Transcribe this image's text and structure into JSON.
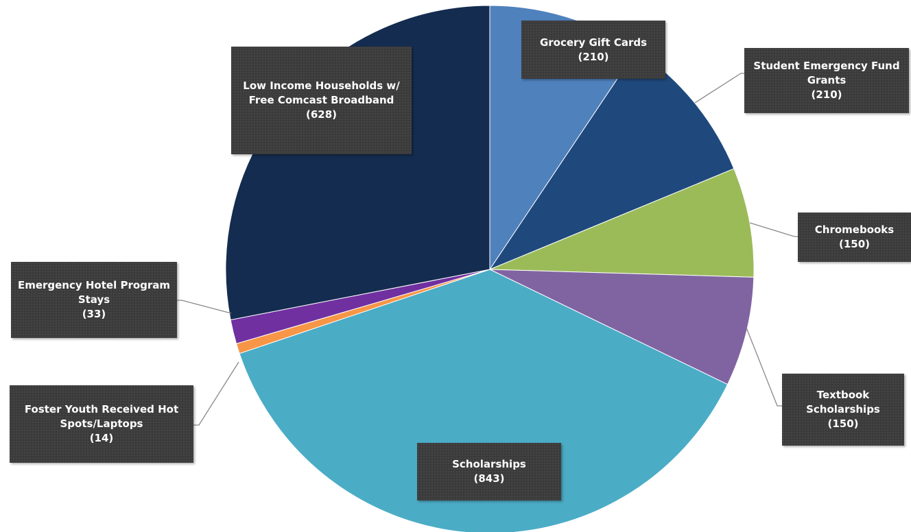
{
  "chart_data": {
    "type": "pie",
    "categories": [
      "Grocery Gift Cards",
      "Student Emergency Fund Grants",
      "Chromebooks",
      "Textbook Scholarships",
      "Scholarships",
      "Foster Youth Received Hot Spots/Laptops",
      "Emergency Hotel Program Stays",
      "Low Income Households w/ Free Comcast Broadband"
    ],
    "values": [
      210,
      210,
      150,
      150,
      843,
      14,
      33,
      628
    ],
    "value_labels": [
      "(210)",
      "(210)",
      "(150)",
      "(150)",
      "(843)",
      "(14)",
      "(33)",
      "(628)"
    ],
    "colors": [
      "#4f81bd",
      "#1f497d",
      "#9bbb59",
      "#8064a2",
      "#4bacc6",
      "#f79646",
      "#7030a0",
      "#142c4f"
    ]
  }
}
